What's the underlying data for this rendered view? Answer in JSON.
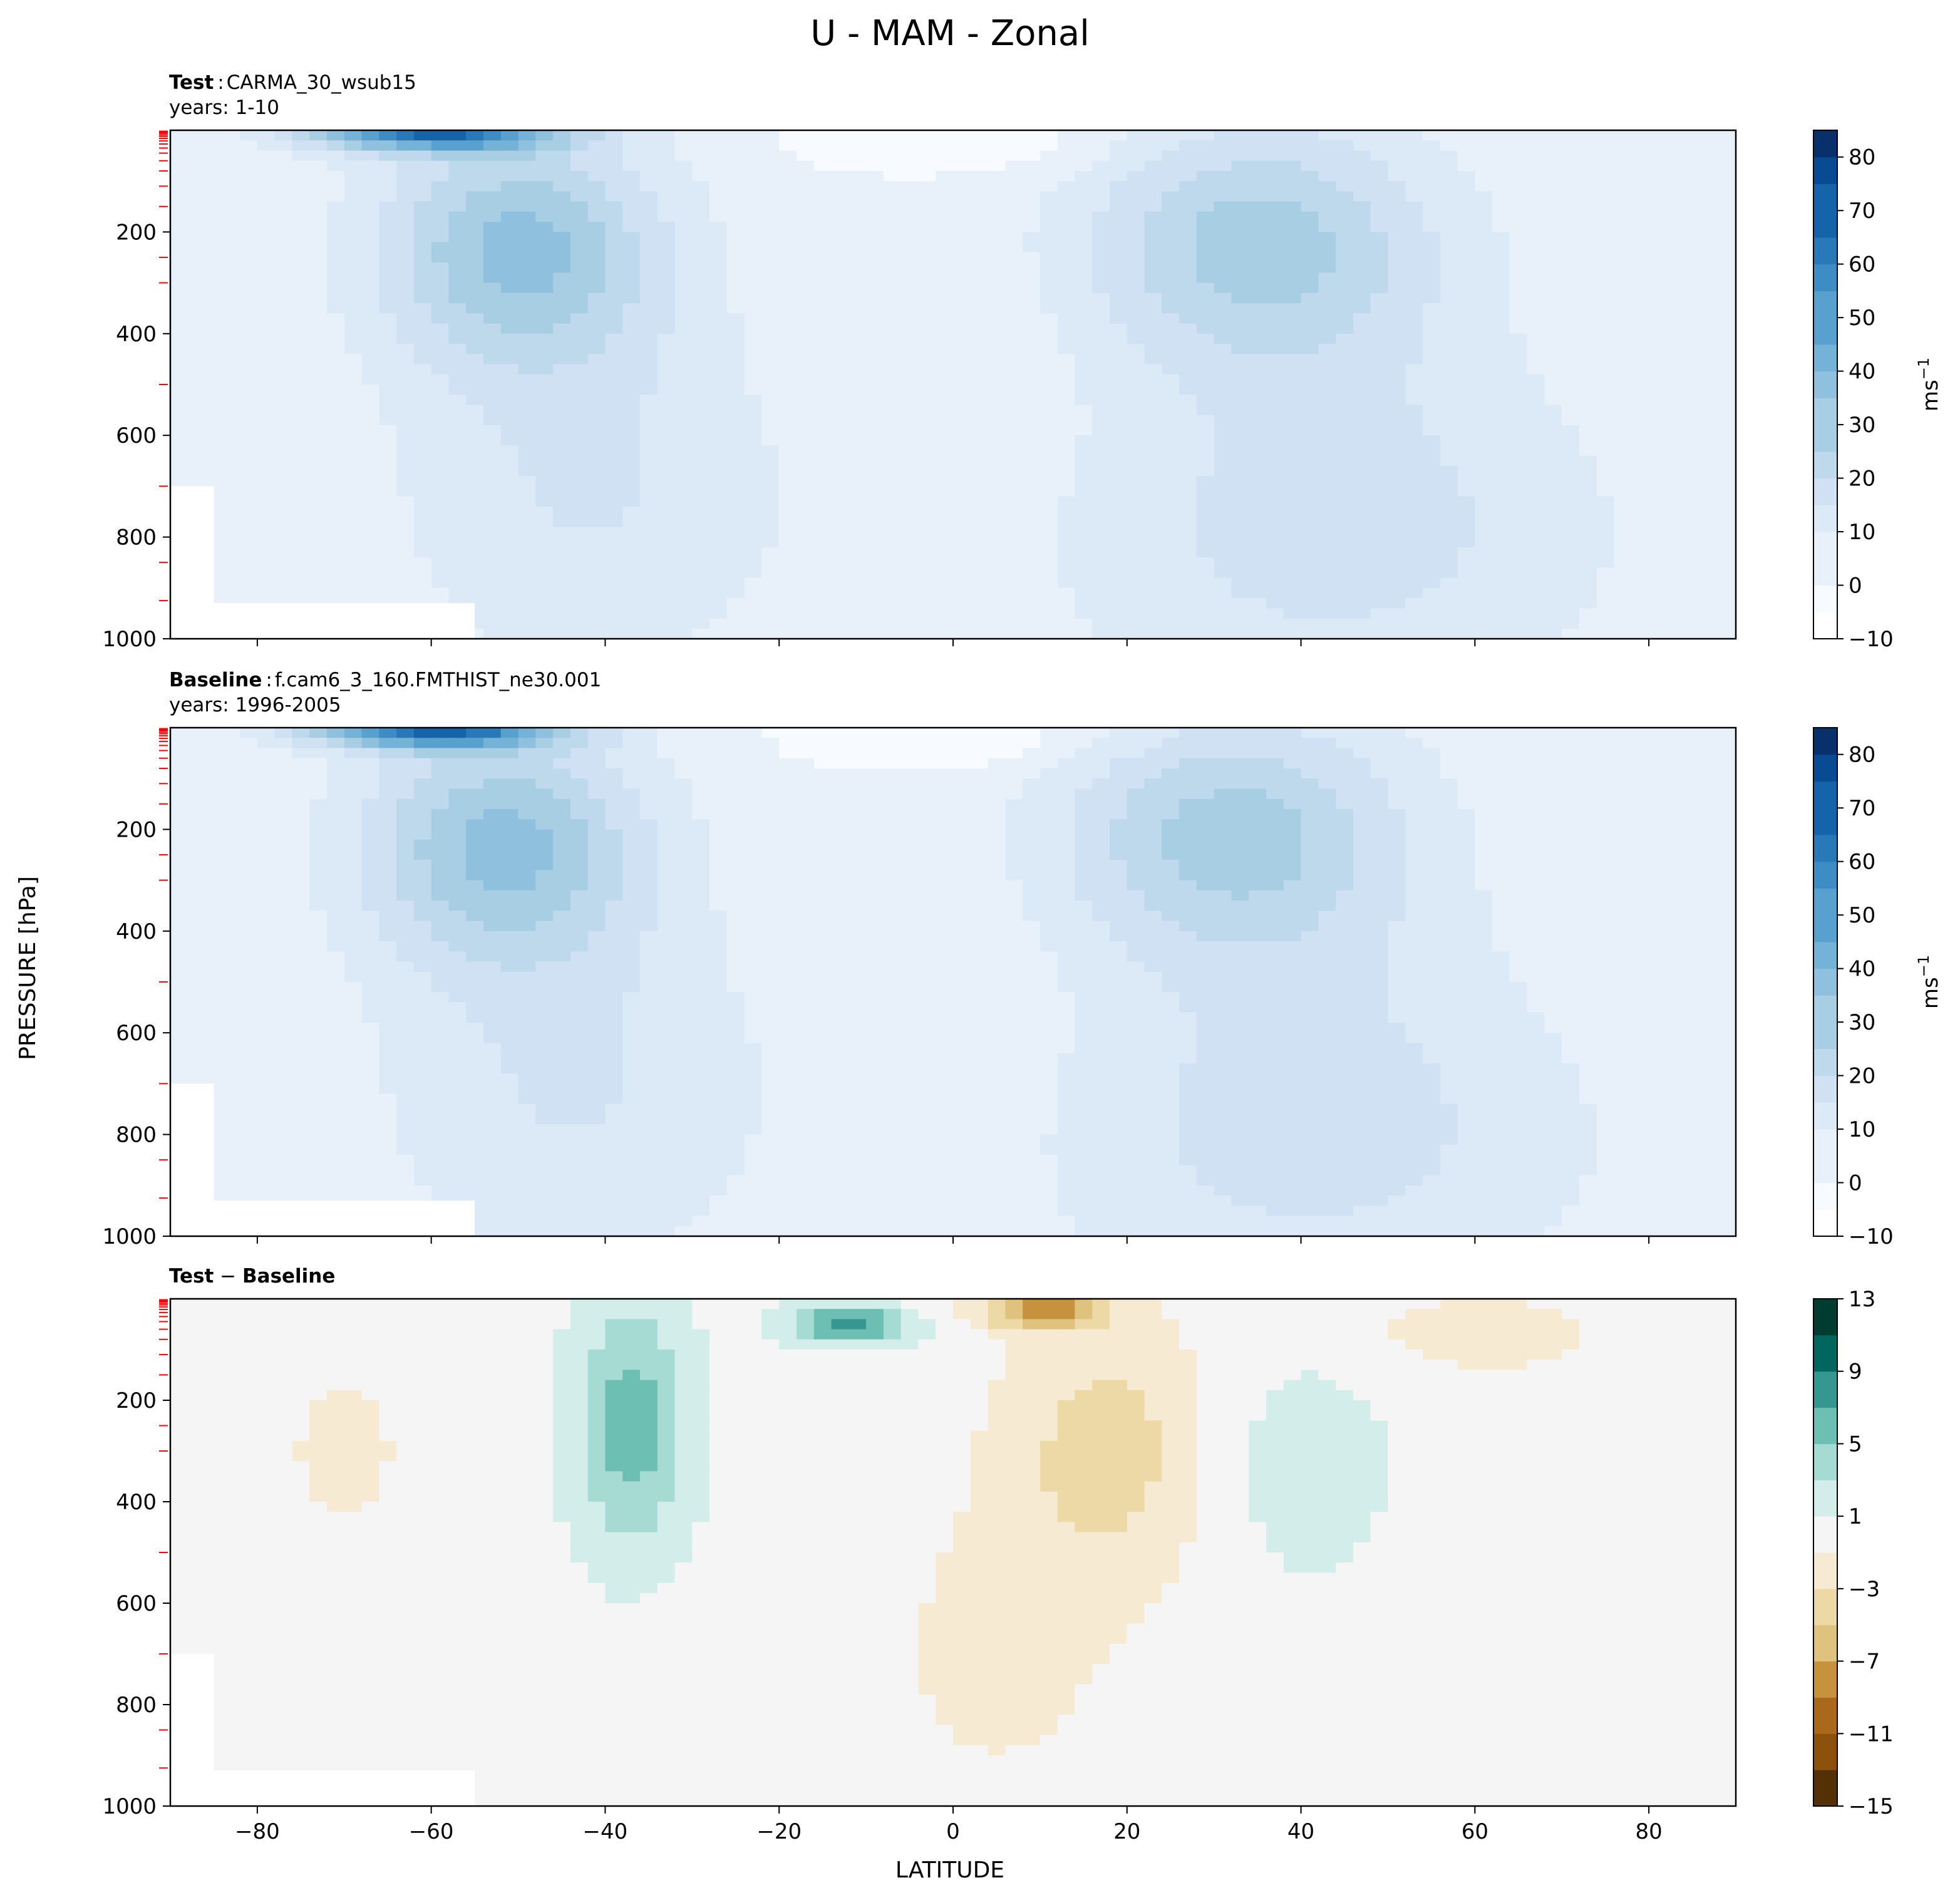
{
  "figure": {
    "title": "U - MAM - Zonal",
    "xlabel": "LATITUDE",
    "ylabel": "PRESSURE [hPa]"
  },
  "colors": {
    "blues": [
      "#f7fbff",
      "#e8f1fa",
      "#dce9f6",
      "#cfe1f2",
      "#bed8ec",
      "#a8cee4",
      "#8fc1de",
      "#74b2d8",
      "#58a1ce",
      "#3d8dc4",
      "#2979b9",
      "#1563a9",
      "#084b93",
      "#08306b"
    ],
    "brbg": [
      "#543005",
      "#8c510a",
      "#a9681c",
      "#c7923e",
      "#dfc27d",
      "#ecd9a6",
      "#f6ebd2",
      "#f4f5f4",
      "#d3eeea",
      "#a6dbd3",
      "#6cbfb2",
      "#35978f",
      "#01665e",
      "#003c30"
    ],
    "model_level_ticks": "#ff0000"
  },
  "chart_data": [
    {
      "type": "contourf",
      "name_label": "Test",
      "separator": ":",
      "case": "CARMA_30_wsub15",
      "years": "years: 1-10",
      "variable": "U",
      "units": "ms",
      "units_exp": "−1",
      "xlim": [
        -90,
        90
      ],
      "ylim": [
        1000,
        0
      ],
      "xticks": [
        -80,
        -60,
        -40,
        -20,
        0,
        20,
        40,
        60,
        80
      ],
      "yticks": [
        200,
        400,
        600,
        800,
        1000
      ],
      "colorbar": {
        "range": [
          -10,
          85
        ],
        "levels": [
          -10,
          -5,
          0,
          5,
          10,
          15,
          20,
          25,
          30,
          35,
          40,
          45,
          50,
          55,
          60,
          65,
          70,
          75,
          80,
          85
        ],
        "ticks": [
          -10,
          0,
          10,
          20,
          30,
          40,
          50,
          60,
          70,
          80
        ],
        "tick_labels": [
          "−10",
          "0",
          "10",
          "20",
          "30",
          "40",
          "50",
          "60",
          "70",
          "80"
        ]
      },
      "features": [
        {
          "label": "SH jet core",
          "lat": -50,
          "p": 230,
          "value": 35
        },
        {
          "label": "NH jet core",
          "lat": 35,
          "p": 220,
          "value": 30
        },
        {
          "label": "SH polar stratospheric jet",
          "lat": -60,
          "p": 5,
          "value": 60
        },
        {
          "label": "Tropical easterlies aloft",
          "lat": -5,
          "p": 30,
          "value": -5
        }
      ]
    },
    {
      "type": "contourf",
      "name_label": "Baseline",
      "separator": ":",
      "case": "f.cam6_3_160.FMTHIST_ne30.001",
      "years": "years: 1996-2005",
      "variable": "U",
      "units": "ms",
      "units_exp": "−1",
      "xlim": [
        -90,
        90
      ],
      "ylim": [
        1000,
        0
      ],
      "xticks": [
        -80,
        -60,
        -40,
        -20,
        0,
        20,
        40,
        60,
        80
      ],
      "yticks": [
        200,
        400,
        600,
        800,
        1000
      ],
      "colorbar": {
        "range": [
          -10,
          85
        ],
        "levels": [
          -10,
          -5,
          0,
          5,
          10,
          15,
          20,
          25,
          30,
          35,
          40,
          45,
          50,
          55,
          60,
          65,
          70,
          75,
          80,
          85
        ],
        "ticks": [
          -10,
          0,
          10,
          20,
          30,
          40,
          50,
          60,
          70,
          80
        ],
        "tick_labels": [
          "−10",
          "0",
          "10",
          "20",
          "30",
          "40",
          "50",
          "60",
          "70",
          "80"
        ]
      },
      "features": [
        {
          "label": "SH jet core",
          "lat": -52,
          "p": 230,
          "value": 35
        },
        {
          "label": "NH jet core",
          "lat": 32,
          "p": 210,
          "value": 30
        },
        {
          "label": "SH polar stratospheric jet",
          "lat": -60,
          "p": 5,
          "value": 60
        }
      ]
    },
    {
      "type": "contourf",
      "title_parts": [
        "Test",
        " − ",
        "Baseline"
      ],
      "xlim": [
        -90,
        90
      ],
      "ylim": [
        1000,
        0
      ],
      "xticks": [
        -80,
        -60,
        -40,
        -20,
        0,
        20,
        40,
        60,
        80
      ],
      "yticks": [
        200,
        400,
        600,
        800,
        1000
      ],
      "colorbar": {
        "range": [
          -15,
          13
        ],
        "levels": [
          -15,
          -13,
          -11,
          -9,
          -7,
          -5,
          -3,
          -1,
          1,
          3,
          5,
          7,
          9,
          11,
          13
        ],
        "ticks": [
          -15,
          -11,
          -7,
          -3,
          1,
          5,
          9,
          13
        ],
        "tick_labels": [
          "−15",
          "−11",
          "−7",
          "−3",
          "1",
          "5",
          "9",
          "13"
        ]
      },
      "features": [
        {
          "label": "positive anomaly",
          "lat": -37,
          "p": 250,
          "value": 6
        },
        {
          "label": "positive anomaly",
          "lat": -12,
          "p": 50,
          "value": 8
        },
        {
          "label": "negative anomaly",
          "lat": 10,
          "p": 20,
          "value": -8
        },
        {
          "label": "negative anomaly",
          "lat": 18,
          "p": 300,
          "value": -4
        },
        {
          "label": "positive anomaly",
          "lat": 40,
          "p": 330,
          "value": 2
        }
      ]
    }
  ]
}
